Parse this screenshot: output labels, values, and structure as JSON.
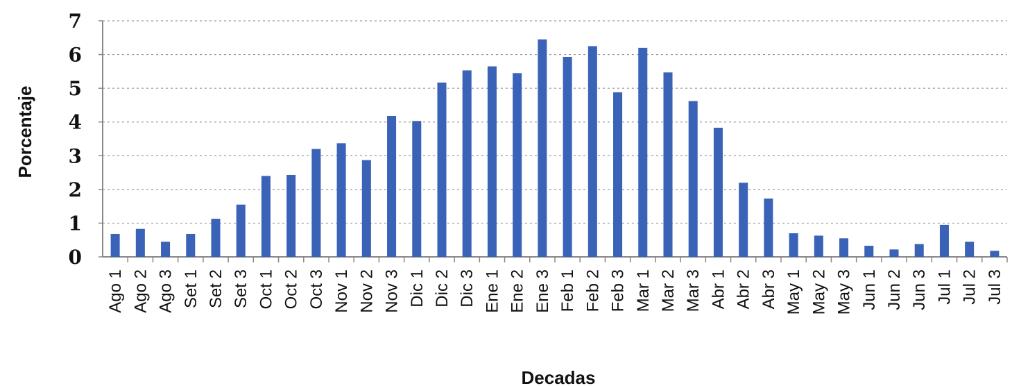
{
  "chart_data": {
    "type": "bar",
    "title": "",
    "xlabel": "Decadas",
    "ylabel": "Porcentaje",
    "ylim": [
      0,
      7
    ],
    "yticks": [
      "0",
      "1",
      "2",
      "3",
      "4",
      "5",
      "6",
      "7"
    ],
    "grid": true,
    "legend": "none",
    "bar_color": "#3a63b8",
    "grid_color": "#9a9a9a",
    "categories": [
      "Ago 1",
      "Ago 2",
      "Ago 3",
      "Set 1",
      "Set 2",
      "Set 3",
      "Oct 1",
      "Oct 2",
      "Oct 3",
      "Nov 1",
      "Nov 2",
      "Nov 3",
      "Dic 1",
      "Dic 2",
      "Dic 3",
      "Ene 1",
      "Ene 2",
      "Ene 3",
      "Feb 1",
      "Feb 2",
      "Feb 3",
      "Mar 1",
      "Mar 2",
      "Mar 3",
      "Abr 1",
      "Abr 2",
      "Abr 3",
      "May 1",
      "May 2",
      "May 3",
      "Jun 1",
      "Jun 2",
      "Jun 3",
      "Jul 1",
      "Jul 2",
      "Jul 3"
    ],
    "values": [
      0.68,
      0.83,
      0.45,
      0.68,
      1.13,
      1.55,
      2.4,
      2.43,
      3.2,
      3.37,
      2.87,
      4.18,
      4.03,
      5.17,
      5.53,
      5.65,
      5.45,
      6.45,
      5.93,
      6.25,
      4.88,
      6.2,
      5.47,
      4.62,
      3.83,
      2.2,
      1.73,
      0.7,
      0.63,
      0.55,
      0.33,
      0.22,
      0.38,
      0.95,
      0.45,
      0.18
    ]
  }
}
